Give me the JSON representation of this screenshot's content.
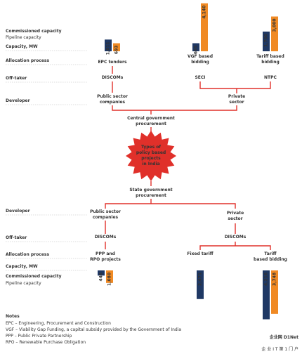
{
  "top": {
    "legend": {
      "commissioned": "Commissioned capacity",
      "pipeline": "Pipeline capacity"
    },
    "row_labels": [
      "Capacity, MW",
      "Allocation process",
      "Off-taker",
      "Developer"
    ],
    "columns": [
      {
        "allocation": [
          "EPC tenders"
        ],
        "offtaker": "DISCOMs",
        "values": [
          1011,
          693
        ],
        "value_labels": [
          "1,011",
          "693"
        ]
      },
      {
        "allocation": [
          "VGF based",
          "bidding"
        ],
        "offtaker": "SECI",
        "values": [
          695,
          4140
        ],
        "value_labels": [
          "695",
          "4,140"
        ]
      },
      {
        "allocation": [
          "Tariff based",
          "bidding"
        ],
        "offtaker": "NTPC",
        "values": [
          1700,
          3000
        ],
        "value_labels": [
          "1,700",
          "3,000"
        ]
      }
    ],
    "developers": [
      [
        "Public sector",
        "companies"
      ],
      [
        "Private",
        "sector"
      ]
    ],
    "procurement": [
      "Central government",
      "procurement"
    ]
  },
  "center": [
    "Types of",
    "policy based",
    "projects",
    "in India"
  ],
  "bottom": {
    "procurement": [
      "State government",
      "procurement"
    ],
    "row_labels": [
      "Developer",
      "Off-taker",
      "Allocation process",
      "Capacity, MW"
    ],
    "legend": {
      "commissioned": "Commissioned capacity",
      "pipeline": "Pipeline capacity"
    },
    "developers": [
      [
        "Public sector",
        "companies"
      ],
      [
        "Private",
        "sector"
      ]
    ],
    "offtakers": [
      "DISCOMs",
      "DISCOMs"
    ],
    "columns": [
      {
        "allocation": [
          "PPP and",
          "RPO projects"
        ],
        "values": [
          446,
          1080
        ],
        "value_labels": [
          "446",
          "1,080"
        ]
      },
      {
        "allocation": [
          "Fixed tariff"
        ],
        "values": [
          2471
        ],
        "value_labels": [
          "2,471"
        ]
      },
      {
        "allocation": [
          "Tariff",
          "based bidding"
        ],
        "values": [
          4216,
          3748
        ],
        "value_labels": [
          "4,216",
          "3,748"
        ]
      }
    ]
  },
  "colors": {
    "commissioned": "#1f3864",
    "pipeline": "#f08a24",
    "connector": "#e0302a"
  },
  "notes": {
    "title": "Notes",
    "items": [
      "EPC – Engineering, Procurement and Construction",
      "VGF – Viability Gap Funding, a capital subsidy provided by the Government of India",
      "PPP – Public Private Partnership",
      "RPO – Renewable Purchase Obligation"
    ]
  },
  "watermark": {
    "brand": "企业网 D1Net",
    "tagline": "企 业 I T 第 1 门 户"
  }
}
